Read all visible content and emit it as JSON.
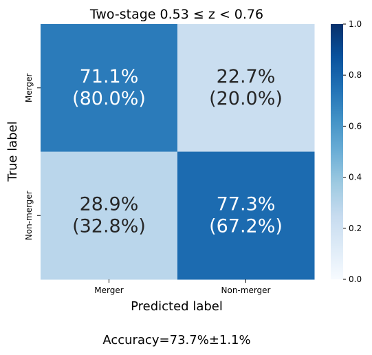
{
  "chart_data": {
    "type": "heatmap",
    "title_prefix": "Two-stage ",
    "title_math": "0.53 ≤ z < 0.76",
    "xlabel": "Predicted label",
    "ylabel": "True label",
    "x_categories": [
      "Merger",
      "Non-merger"
    ],
    "y_categories": [
      "Merger",
      "Non-merger"
    ],
    "values": [
      [
        0.711,
        0.227
      ],
      [
        0.289,
        0.773
      ]
    ],
    "cell_text": [
      [
        "71.1%",
        "22.7%"
      ],
      [
        "28.9%",
        "77.3%"
      ]
    ],
    "cell_subtext": [
      [
        "(80.0%)",
        "(20.0%)"
      ],
      [
        "(32.8%)",
        "(67.2%)"
      ]
    ],
    "colorbar": {
      "range": [
        0.0,
        1.0
      ],
      "ticks": [
        0.0,
        0.2,
        0.4,
        0.6,
        0.8,
        1.0
      ],
      "tick_labels": [
        "0.0",
        "0.2",
        "0.4",
        "0.6",
        "0.8",
        "1.0"
      ],
      "colormap": "Blues"
    },
    "footer": "Accuracy=73.7%±1.1%",
    "colors": {
      "cmap_stops": [
        "#f7fbff",
        "#deebf7",
        "#c6dbef",
        "#9ecae1",
        "#6baed6",
        "#4292c6",
        "#2171b5",
        "#08519c",
        "#08306b"
      ],
      "dark_text": "#262626",
      "light_text": "#ffffff"
    }
  }
}
